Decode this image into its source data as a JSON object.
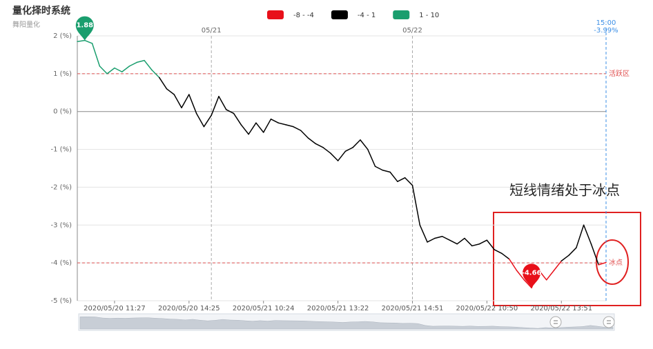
{
  "chart_data": {
    "type": "line",
    "title": "量化择时系统",
    "subtitle": "舞阳量化",
    "annotation": "短线情绪处于冰点",
    "x": [
      null,
      null,
      null,
      null,
      null,
      "2020/05/20 11:27",
      null,
      null,
      null,
      null,
      null,
      null,
      null,
      null,
      null,
      "2020/05/20 14:25",
      null,
      null,
      null,
      null,
      null,
      null,
      null,
      null,
      null,
      "2020/05/21 10:24",
      null,
      null,
      null,
      null,
      null,
      null,
      null,
      null,
      null,
      "2020/05/21 13:22",
      null,
      null,
      null,
      null,
      null,
      null,
      null,
      null,
      null,
      "2020/05/21 14:51",
      null,
      null,
      null,
      null,
      null,
      null,
      null,
      null,
      null,
      "2020/05/22 10:50",
      null,
      null,
      null,
      null,
      null,
      null,
      null,
      null,
      null,
      "2020/05/22 13:51",
      null,
      null,
      null,
      null,
      null,
      null
    ],
    "x_top": [
      null,
      null,
      null,
      null,
      null,
      null,
      null,
      null,
      null,
      null,
      null,
      null,
      null,
      null,
      null,
      null,
      null,
      null,
      "05/21",
      null,
      null,
      null,
      null,
      null,
      null,
      null,
      null,
      null,
      null,
      null,
      null,
      null,
      null,
      null,
      null,
      null,
      null,
      null,
      null,
      null,
      null,
      null,
      null,
      null,
      null,
      "05/22",
      null,
      null,
      null,
      null,
      null,
      null,
      null,
      null,
      null,
      null,
      null,
      null,
      null,
      null,
      null,
      null,
      null,
      null,
      null,
      null,
      null,
      null,
      null,
      null,
      null,
      null
    ],
    "values": [
      1.85,
      1.88,
      1.8,
      1.2,
      1.0,
      1.15,
      1.05,
      1.2,
      1.3,
      1.35,
      1.1,
      0.9,
      0.6,
      0.45,
      0.1,
      0.45,
      -0.05,
      -0.4,
      -0.1,
      0.4,
      0.05,
      -0.05,
      -0.35,
      -0.6,
      -0.3,
      -0.55,
      -0.2,
      -0.3,
      -0.35,
      -0.4,
      -0.5,
      -0.7,
      -0.85,
      -0.95,
      -1.1,
      -1.3,
      -1.05,
      -0.95,
      -0.75,
      -1.0,
      -1.45,
      -1.55,
      -1.6,
      -1.85,
      -1.75,
      -1.95,
      -3.0,
      -3.45,
      -3.35,
      -3.3,
      -3.4,
      -3.5,
      -3.35,
      -3.55,
      -3.5,
      -3.4,
      -3.65,
      -3.75,
      -3.9,
      -4.2,
      -4.45,
      -4.66,
      -4.2,
      -4.45,
      -4.2,
      -3.95,
      -3.8,
      -3.6,
      -3.0,
      -3.5,
      -4.05,
      -3.99
    ],
    "pieces": [
      {
        "min": -8,
        "max": -4,
        "label": "-8 - -4",
        "color": "#e8101a"
      },
      {
        "min": -4,
        "max": 1,
        "label": "-4 - 1",
        "color": "#000000"
      },
      {
        "min": 1,
        "max": 10,
        "label": "1 - 10",
        "color": "#1a9e6e"
      }
    ],
    "mark_lines": [
      {
        "value": 1,
        "label": "活跃区",
        "color": "#e05050"
      },
      {
        "value": -4,
        "label": "冰点",
        "color": "#e05050"
      }
    ],
    "end_label": {
      "time": "15:00",
      "value": -3.99,
      "value_label": "-3.99%",
      "color": "#3a8ee6"
    },
    "ylim": [
      -5,
      2
    ],
    "yticks": [
      {
        "value": 2,
        "label": "2 (%)"
      },
      {
        "value": 1,
        "label": "1 (%)"
      },
      {
        "value": 0,
        "label": "0 (%)"
      },
      {
        "value": -1,
        "label": "-1 (%)"
      },
      {
        "value": -2,
        "label": "-2 (%)"
      },
      {
        "value": -3,
        "label": "-3 (%)"
      },
      {
        "value": -4,
        "label": "-4 (%)"
      },
      {
        "value": -5,
        "label": "-5 (%)"
      }
    ],
    "grid": true
  }
}
